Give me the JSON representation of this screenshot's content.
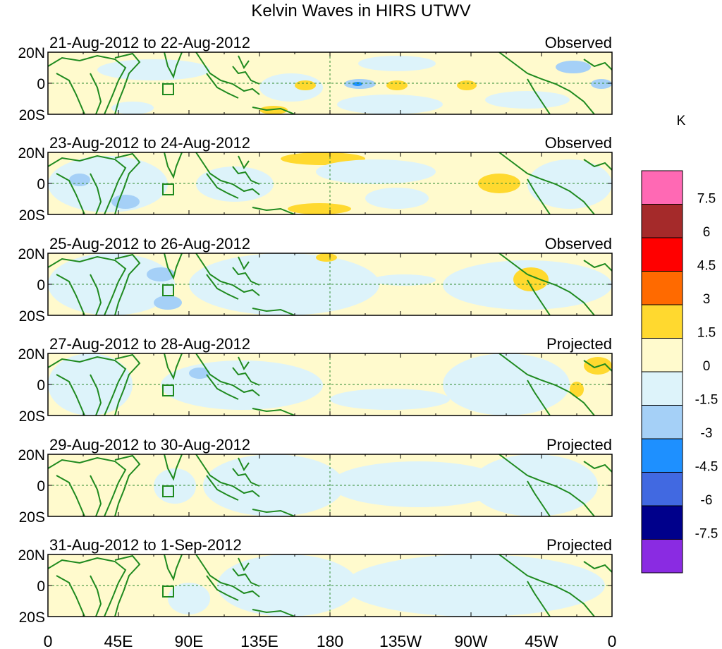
{
  "title": "Kelvin Waves in HIRS UTWV",
  "panels": [
    {
      "date_range": "21-Aug-2012 to 22-Aug-2012",
      "status": "Observed"
    },
    {
      "date_range": "23-Aug-2012 to 24-Aug-2012",
      "status": "Observed"
    },
    {
      "date_range": "25-Aug-2012 to 26-Aug-2012",
      "status": "Observed"
    },
    {
      "date_range": "27-Aug-2012 to 28-Aug-2012",
      "status": "Projected"
    },
    {
      "date_range": "29-Aug-2012 to 30-Aug-2012",
      "status": "Projected"
    },
    {
      "date_range": "31-Aug-2012 to 1-Sep-2012",
      "status": "Projected"
    }
  ],
  "lat_labels": [
    "20N",
    "0",
    "20S"
  ],
  "lon_labels": [
    "0",
    "45E",
    "90E",
    "135E",
    "180",
    "135W",
    "90W",
    "45W",
    "0"
  ],
  "colorbar": {
    "unit": "K",
    "labels": [
      "7.5",
      "6",
      "4.5",
      "3",
      "1.5",
      "0",
      "-1.5",
      "-3",
      "-4.5",
      "-6",
      "-7.5"
    ],
    "colors": [
      "#ff69b4",
      "#a52a2a",
      "#ff0000",
      "#ff6a00",
      "#ffd92f",
      "#fffacd",
      "#ddf3fa",
      "#a5d0f7",
      "#1e90ff",
      "#4169e1",
      "#00008b",
      "#8a2be2"
    ]
  }
}
